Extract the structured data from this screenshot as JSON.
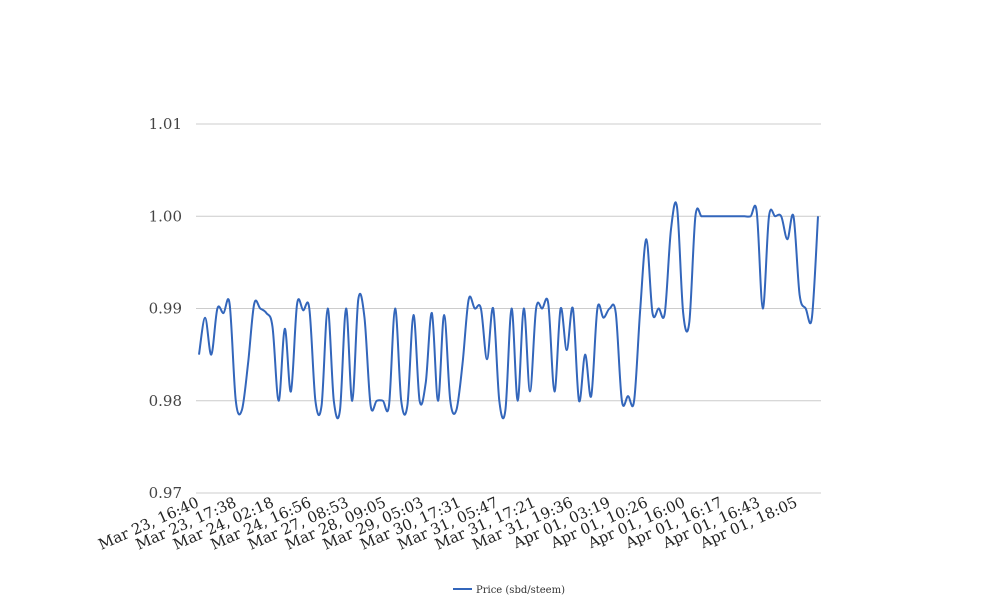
{
  "chart_data": {
    "type": "line",
    "title": "",
    "xlabel": "",
    "ylabel": "",
    "ylim": [
      0.97,
      1.01
    ],
    "y_ticks": [
      "0.97",
      "0.98",
      "0.99",
      "1.00",
      "1.01"
    ],
    "y_tick_values": [
      0.97,
      0.98,
      0.99,
      1.0,
      1.01
    ],
    "x_tick_labels": [
      "Mar 23, 16:40",
      "Mar 23, 17:38",
      "Mar 24, 02:18",
      "Mar 24, 16:56",
      "Mar 27, 08:53",
      "Mar 28, 09:05",
      "Mar 29, 05:03",
      "Mar 30, 17:31",
      "Mar 31, 05:47",
      "Mar 31, 17:21",
      "Mar 31, 19:36",
      "Apr 01, 03:19",
      "Apr 01, 10:26",
      "Apr 01, 16:00",
      "Apr 01, 16:17",
      "Apr 01, 16:43",
      "Apr 01, 18:05"
    ],
    "grid": true,
    "legend_position": "bottom",
    "series": [
      {
        "name": "Price (sbd/steem)",
        "color": "#3366bb",
        "values": [
          0.985,
          0.989,
          0.985,
          0.99,
          0.9895,
          0.9905,
          0.98,
          0.979,
          0.984,
          0.9905,
          0.99,
          0.9895,
          0.988,
          0.98,
          0.9878,
          0.981,
          0.9905,
          0.9898,
          0.99,
          0.98,
          0.9795,
          0.99,
          0.98,
          0.979,
          0.99,
          0.98,
          0.991,
          0.989,
          0.9795,
          0.98,
          0.98,
          0.9795,
          0.99,
          0.98,
          0.9795,
          0.9893,
          0.98,
          0.982,
          0.9895,
          0.98,
          0.9893,
          0.98,
          0.979,
          0.984,
          0.991,
          0.99,
          0.99,
          0.9845,
          0.99,
          0.98,
          0.979,
          0.99,
          0.98,
          0.99,
          0.981,
          0.99,
          0.99,
          0.9905,
          0.981,
          0.99,
          0.9855,
          0.99,
          0.98,
          0.985,
          0.9805,
          0.99,
          0.989,
          0.99,
          0.9895,
          0.98,
          0.9805,
          0.98,
          0.99,
          0.9975,
          0.9895,
          0.99,
          0.9895,
          0.9985,
          1.001,
          0.9895,
          0.9885,
          1.0,
          1.0,
          1.0,
          1.0,
          1.0,
          1.0,
          1.0,
          1.0,
          1.0,
          1.0,
          1.0005,
          0.99,
          1.0,
          1.0,
          1.0,
          0.9975,
          1.0,
          0.9915,
          0.99,
          0.989,
          1.0
        ]
      }
    ]
  }
}
